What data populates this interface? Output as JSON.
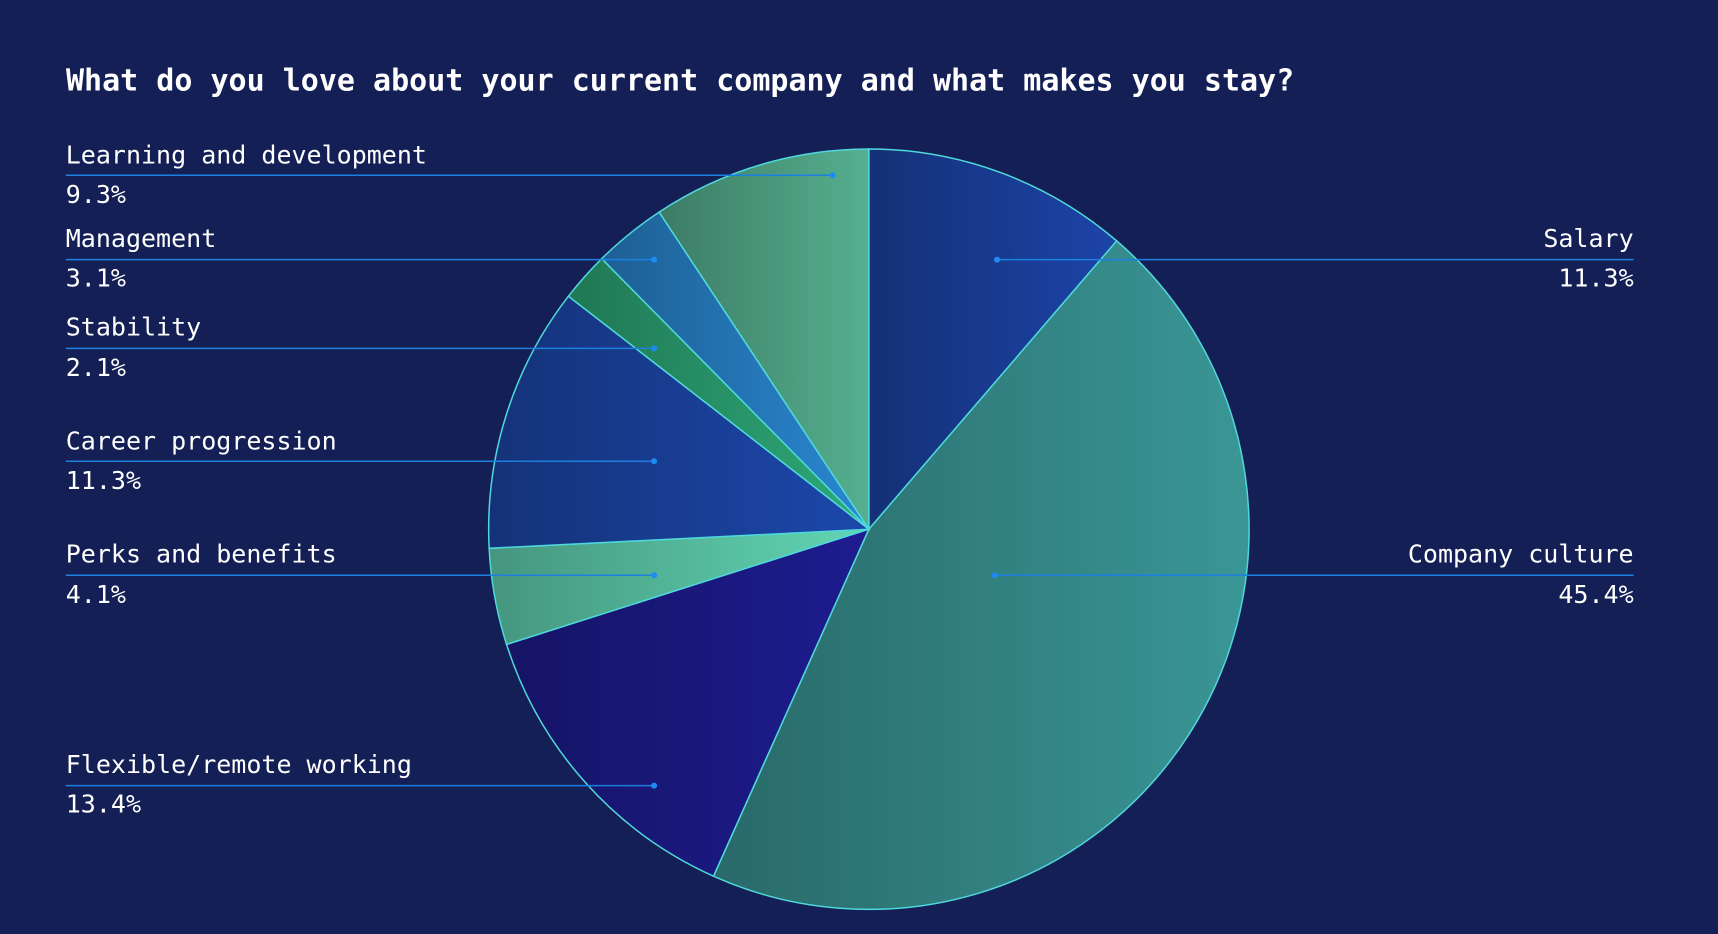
{
  "chart_data": {
    "type": "pie",
    "title": "What do you love about your current company and what makes you stay?",
    "categories": [
      "Salary",
      "Company culture",
      "Flexible/remote working",
      "Perks and benefits",
      "Career progression",
      "Stability",
      "Management",
      "Learning and development"
    ],
    "values": [
      11.3,
      45.4,
      13.4,
      4.1,
      11.3,
      2.1,
      3.1,
      9.3
    ],
    "value_labels": [
      "11.3%",
      "45.4%",
      "13.4%",
      "4.1%",
      "11.3%",
      "2.1%",
      "3.1%",
      "9.3%"
    ],
    "colors": [
      "#1c44a8",
      "#3a9696",
      "#1e1c90",
      "#62d6b4",
      "#1c48ac",
      "#2eaa78",
      "#2a88d2",
      "#56b090"
    ]
  }
}
